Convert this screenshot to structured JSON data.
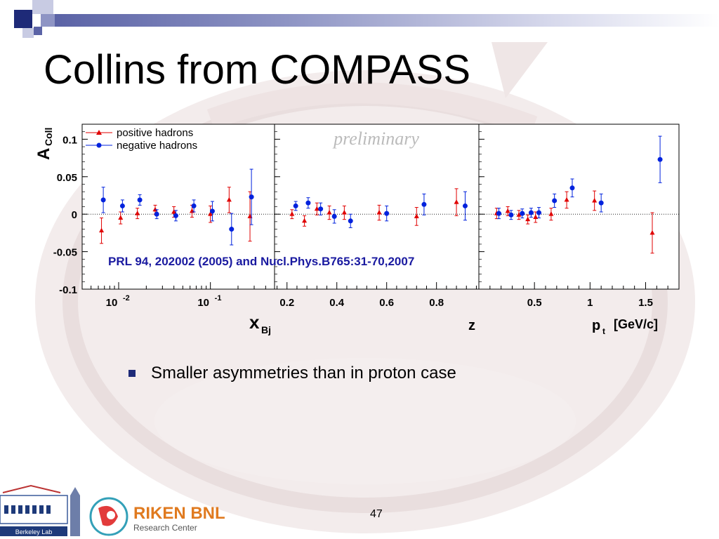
{
  "slide": {
    "title": "Collins from COMPASS",
    "bullet": "Smaller asymmetries than in proton case",
    "page_number": "47"
  },
  "logos": {
    "berkeley_text": "Berkeley Lab",
    "riken_title": "RIKEN BNL",
    "riken_sub": "Research Center"
  },
  "colors": {
    "positive": "#e00000",
    "negative": "#0022dd",
    "accent": "#1e2a78",
    "citation": "#1a1aa0"
  },
  "chart_data": {
    "type": "scatter",
    "ylabel": "A",
    "ylabel_sub": "Coll",
    "ylim": [
      -0.1,
      0.12
    ],
    "yticks": [
      0.1,
      0.05,
      0,
      -0.05,
      -0.1
    ],
    "ytick_labels": [
      "0.1",
      "0.05",
      "0",
      "-0.05",
      "-0.1"
    ],
    "annotation_preliminary": "preliminary",
    "citation": "PRL 94, 202002 (2005) and Nucl.Phys.B765:31-70,2007",
    "legend": [
      {
        "name": "positive hadrons",
        "marker": "triangle"
      },
      {
        "name": "negative hadrons",
        "marker": "circle"
      }
    ],
    "legend_position": "top-left",
    "panels": [
      {
        "id": "xbj",
        "xlabel": "x",
        "xlabel_sub": "Bj",
        "xscale": "log",
        "xlim": [
          0.004,
          0.5
        ],
        "xticks": [
          0.01,
          0.1
        ],
        "xtick_base": "10",
        "xtick_exps": [
          "-2",
          "-1"
        ],
        "series": [
          {
            "name": "positive hadrons",
            "x": [
              0.0065,
              0.0105,
              0.016,
              0.025,
              0.04,
              0.063,
              0.1,
              0.16,
              0.27
            ],
            "y": [
              -0.022,
              -0.005,
              0.001,
              0.006,
              0.003,
              0.004,
              0.0,
              0.019,
              -0.003
            ],
            "err": [
              0.017,
              0.008,
              0.007,
              0.006,
              0.007,
              0.008,
              0.011,
              0.017,
              0.033
            ]
          },
          {
            "name": "negative hadrons",
            "x": [
              0.0068,
              0.011,
              0.017,
              0.026,
              0.042,
              0.066,
              0.105,
              0.17,
              0.28
            ],
            "y": [
              0.019,
              0.011,
              0.019,
              0.0,
              -0.002,
              0.011,
              0.004,
              -0.02,
              0.023
            ],
            "err": [
              0.017,
              0.008,
              0.007,
              0.006,
              0.007,
              0.008,
              0.013,
              0.021,
              0.037
            ]
          }
        ]
      },
      {
        "id": "z",
        "xlabel": "z",
        "xlim": [
          0.15,
          0.97
        ],
        "xticks": [
          0.2,
          0.4,
          0.6,
          0.8
        ],
        "xtick_labels": [
          "0.2",
          "0.4",
          "0.6",
          "0.8"
        ],
        "series": [
          {
            "name": "positive hadrons",
            "x": [
              0.22,
              0.27,
              0.32,
              0.37,
              0.43,
              0.57,
              0.72,
              0.88
            ],
            "y": [
              0.0,
              -0.009,
              0.007,
              0.002,
              0.002,
              0.002,
              -0.003,
              0.016
            ],
            "err": [
              0.006,
              0.007,
              0.008,
              0.009,
              0.009,
              0.01,
              0.012,
              0.018
            ]
          },
          {
            "name": "negative hadrons",
            "x": [
              0.235,
              0.285,
              0.335,
              0.39,
              0.455,
              0.6,
              0.75,
              0.915
            ],
            "y": [
              0.011,
              0.015,
              0.007,
              -0.003,
              -0.009,
              0.001,
              0.013,
              0.011
            ],
            "err": [
              0.006,
              0.007,
              0.008,
              0.009,
              0.009,
              0.01,
              0.014,
              0.019
            ]
          }
        ]
      },
      {
        "id": "pt",
        "xlabel": "p",
        "xlabel_sub": "t",
        "xlabel_unit": "[GeV/c]",
        "xlim": [
          0.0,
          1.8
        ],
        "xticks": [
          0.5,
          1,
          1.5
        ],
        "xtick_labels": [
          "0.5",
          "1",
          "1.5"
        ],
        "series": [
          {
            "name": "positive hadrons",
            "x": [
              0.16,
              0.26,
              0.36,
              0.44,
              0.51,
              0.65,
              0.79,
              1.04,
              1.56
            ],
            "y": [
              0.001,
              0.004,
              -0.001,
              -0.007,
              -0.004,
              0.0,
              0.019,
              0.018,
              -0.025
            ],
            "err": [
              0.007,
              0.006,
              0.006,
              0.006,
              0.007,
              0.008,
              0.011,
              0.013,
              0.027
            ]
          },
          {
            "name": "negative hadrons",
            "x": [
              0.18,
              0.29,
              0.39,
              0.47,
              0.54,
              0.68,
              0.84,
              1.1,
              1.63
            ],
            "y": [
              0.001,
              -0.001,
              0.001,
              0.002,
              0.002,
              0.018,
              0.035,
              0.015,
              0.073
            ],
            "err": [
              0.007,
              0.006,
              0.006,
              0.006,
              0.007,
              0.009,
              0.012,
              0.012,
              0.031
            ]
          }
        ]
      }
    ]
  }
}
